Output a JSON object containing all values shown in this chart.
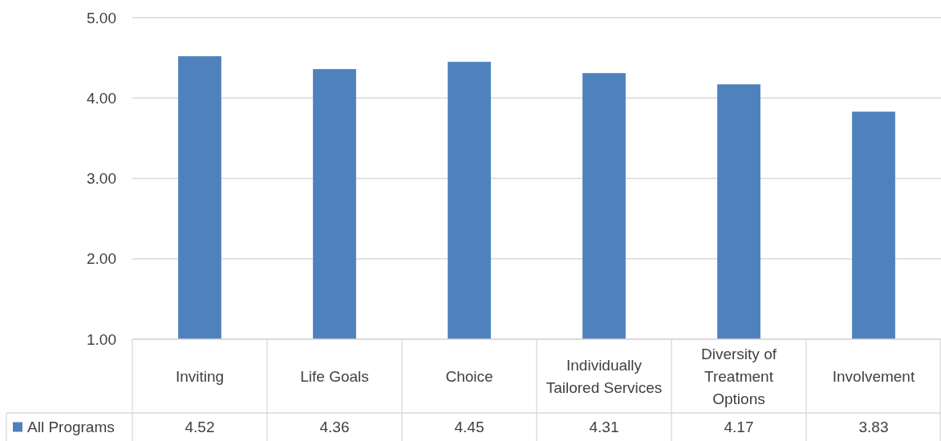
{
  "chart_data": {
    "type": "bar",
    "categories": [
      "Inviting",
      "Life Goals",
      "Choice",
      "Individually Tailored Services",
      "Diversity of Treatment Options",
      "Involvement"
    ],
    "series": [
      {
        "name": "All Programs",
        "color": "#4f81bd",
        "values": [
          4.52,
          4.36,
          4.45,
          4.31,
          4.17,
          3.83
        ]
      }
    ],
    "ylim": [
      1,
      5
    ],
    "yticks": [
      {
        "value": 1,
        "label": "1.00"
      },
      {
        "value": 2,
        "label": "2.00"
      },
      {
        "value": 3,
        "label": "3.00"
      },
      {
        "value": 4,
        "label": "4.00"
      },
      {
        "value": 5,
        "label": "5.00"
      }
    ],
    "grid": "y",
    "legend": "bottom",
    "data_labels": true
  }
}
